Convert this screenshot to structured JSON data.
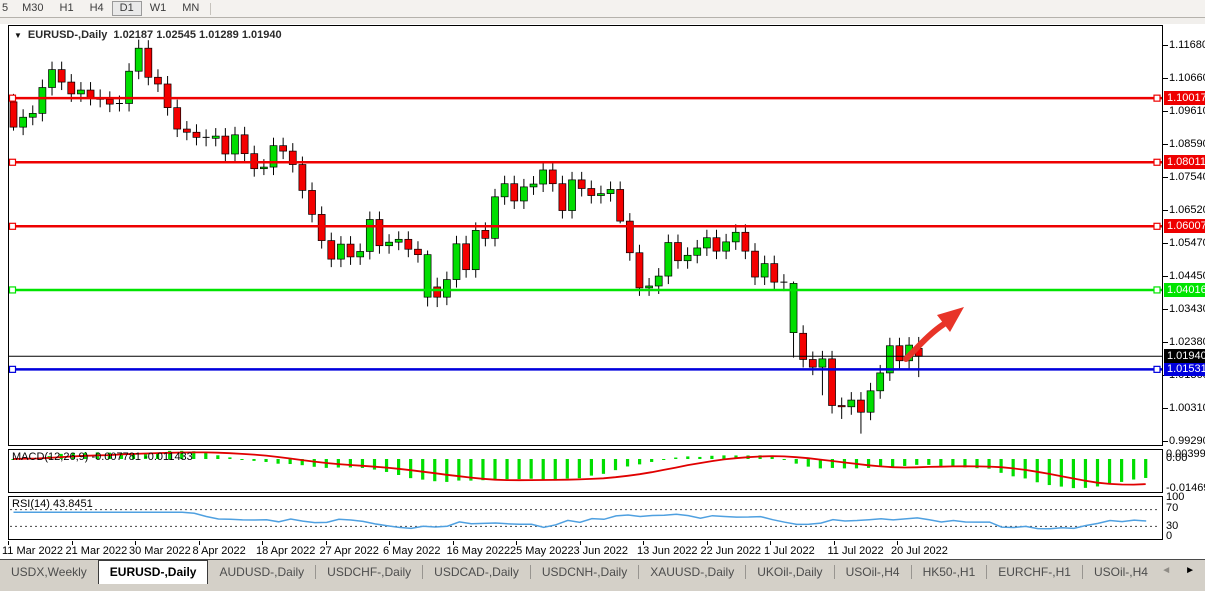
{
  "toolbar": {
    "periods": [
      {
        "label": "5",
        "active": false
      },
      {
        "label": "M30",
        "active": false
      },
      {
        "label": "H1",
        "active": false
      },
      {
        "label": "H4",
        "active": false
      },
      {
        "label": "D1",
        "active": true
      },
      {
        "label": "W1",
        "active": false
      },
      {
        "label": "MN",
        "active": false
      }
    ]
  },
  "chart": {
    "dropdown_glyph": "▼",
    "symbol_header": "EURUSD-,Daily",
    "ohlc_header": "1.02187 1.02545 1.01289 1.01940"
  },
  "price_axis": {
    "ticks": [
      "1.11680",
      "1.10660",
      "1.09610",
      "1.08590",
      "1.07540",
      "1.06520",
      "1.05470",
      "1.04450",
      "1.03430",
      "1.02380",
      "1.01360",
      "1.00310",
      "0.99290"
    ]
  },
  "chart_data": {
    "type": "candlestick",
    "symbol": "EURUSD-,Daily",
    "last_ohlc": {
      "open": "1.02187",
      "high": "1.02545",
      "low": "1.01289",
      "close": "1.01940"
    },
    "price_range": {
      "top": 1.1168,
      "bottom": 0.9929
    },
    "x_labels": [
      "11 Mar 2022",
      "21 Mar 2022",
      "30 Mar 2022",
      "8 Apr 2022",
      "18 Apr 2022",
      "27 Apr 2022",
      "6 May 2022",
      "16 May 2022",
      "25 May 2022",
      "3 Jun 2022",
      "13 Jun 2022",
      "22 Jun 2022",
      "1 Jul 2022",
      "11 Jul 2022",
      "20 Jul 2022"
    ],
    "colors": {
      "up": "#00DE00",
      "down": "#F40000",
      "wick": "#000000",
      "macd_hist": "#00DE00",
      "macd_signal": "#E00000",
      "rsi_line": "#4FA0E0",
      "line_red": "#EE0000",
      "line_green": "#00E400",
      "line_blue": "#0000DD",
      "bid_line": "#000000",
      "arrow": "#E83428"
    },
    "hlines": [
      {
        "price": 1.10017,
        "label": "1.10017",
        "color": "#EE0000",
        "kind": "resistance"
      },
      {
        "price": 1.08011,
        "label": "1.08011",
        "color": "#EE0000",
        "kind": "resistance"
      },
      {
        "price": 1.06007,
        "label": "1.06007",
        "color": "#EE0000",
        "kind": "resistance"
      },
      {
        "price": 1.04016,
        "label": "1.04016",
        "color": "#00E400",
        "kind": "support"
      },
      {
        "price": 1.01531,
        "label": "1.01531",
        "color": "#0000DD",
        "kind": "support"
      }
    ],
    "bid_line": {
      "price": 1.0194,
      "label": "1.01940",
      "color": "#000000"
    },
    "candles": [
      [
        1.099,
        1.1015,
        1.09,
        1.0911
      ],
      [
        1.0911,
        1.0967,
        1.0886,
        1.0942
      ],
      [
        1.0942,
        1.0979,
        1.0917,
        1.0954
      ],
      [
        1.0954,
        1.106,
        1.0929,
        1.1035
      ],
      [
        1.1035,
        1.1116,
        1.101,
        1.1091
      ],
      [
        1.1091,
        1.1116,
        1.1027,
        1.1052
      ],
      [
        1.1052,
        1.1077,
        1.099,
        1.1015
      ],
      [
        1.1015,
        1.1052,
        1.099,
        1.1027
      ],
      [
        1.1027,
        1.1052,
        1.0979,
        1.1004
      ],
      [
        1.1004,
        1.1029,
        1.0973,
        1.0998
      ],
      [
        1.0998,
        1.1023,
        1.0958,
        1.0983
      ],
      [
        1.0983,
        1.101,
        1.096,
        1.0985
      ],
      [
        1.0985,
        1.1111,
        1.096,
        1.1086
      ],
      [
        1.1086,
        1.1185,
        1.1061,
        1.1158
      ],
      [
        1.1158,
        1.1183,
        1.1042,
        1.1067
      ],
      [
        1.1067,
        1.1092,
        1.1021,
        1.1046
      ],
      [
        1.1046,
        1.1071,
        1.0947,
        1.0972
      ],
      [
        1.0972,
        1.0997,
        1.088,
        1.0905
      ],
      [
        1.0905,
        1.093,
        1.087,
        1.0895
      ],
      [
        1.0895,
        1.092,
        1.0854,
        1.0879
      ],
      [
        1.0879,
        1.0904,
        1.0851,
        1.0876
      ],
      [
        1.0876,
        1.0908,
        1.0851,
        1.0883
      ],
      [
        1.0883,
        1.0908,
        1.0802,
        1.0827
      ],
      [
        1.0827,
        1.0912,
        1.0802,
        1.0887
      ],
      [
        1.0887,
        1.0912,
        1.0803,
        1.0828
      ],
      [
        1.0828,
        1.0853,
        1.0756,
        1.0781
      ],
      [
        1.0781,
        1.0811,
        1.0761,
        1.0786
      ],
      [
        1.0786,
        1.0878,
        1.0761,
        1.0853
      ],
      [
        1.0853,
        1.0878,
        1.0811,
        1.0836
      ],
      [
        1.0836,
        1.0861,
        1.0769,
        1.0794
      ],
      [
        1.0794,
        1.0819,
        1.0688,
        1.0713
      ],
      [
        1.0713,
        1.0738,
        1.0613,
        1.0638
      ],
      [
        1.0638,
        1.0663,
        1.0531,
        1.0556
      ],
      [
        1.0556,
        1.0581,
        1.0473,
        1.0498
      ],
      [
        1.0498,
        1.057,
        1.0473,
        1.0545
      ],
      [
        1.0545,
        1.057,
        1.048,
        1.0505
      ],
      [
        1.0505,
        1.0547,
        1.048,
        1.0522
      ],
      [
        1.0522,
        1.0647,
        1.0497,
        1.0622
      ],
      [
        1.0622,
        1.0647,
        1.0515,
        1.054
      ],
      [
        1.054,
        1.0576,
        1.0515,
        1.0551
      ],
      [
        1.0551,
        1.0585,
        1.0526,
        1.056
      ],
      [
        1.056,
        1.0585,
        1.0504,
        1.0529
      ],
      [
        1.0529,
        1.0554,
        1.0487,
        1.0512
      ],
      [
        1.0379,
        1.0525,
        1.035,
        1.0512
      ],
      [
        1.0411,
        1.044,
        1.0348,
        1.0379
      ],
      [
        1.0379,
        1.0459,
        1.0354,
        1.0434
      ],
      [
        1.0434,
        1.0571,
        1.0409,
        1.0546
      ],
      [
        1.0546,
        1.0571,
        1.044,
        1.0465
      ],
      [
        1.0465,
        1.0613,
        1.044,
        1.0588
      ],
      [
        1.0588,
        1.0613,
        1.0538,
        1.0563
      ],
      [
        1.0563,
        1.0718,
        1.0538,
        1.0693
      ],
      [
        1.0693,
        1.0759,
        1.0668,
        1.0734
      ],
      [
        1.0734,
        1.0759,
        1.0655,
        1.068
      ],
      [
        1.068,
        1.0749,
        1.0655,
        1.0724
      ],
      [
        1.0724,
        1.0758,
        1.0699,
        1.0733
      ],
      [
        1.0733,
        1.0802,
        1.0708,
        1.0777
      ],
      [
        1.0777,
        1.0802,
        1.0709,
        1.0734
      ],
      [
        1.0734,
        1.0759,
        1.0625,
        1.065
      ],
      [
        1.065,
        1.0771,
        1.0625,
        1.0746
      ],
      [
        1.0746,
        1.0771,
        1.0694,
        1.0719
      ],
      [
        1.0719,
        1.0744,
        1.0672,
        1.0697
      ],
      [
        1.0697,
        1.0728,
        1.0672,
        1.0703
      ],
      [
        1.0703,
        1.0741,
        1.0678,
        1.0716
      ],
      [
        1.0716,
        1.0741,
        1.061,
        1.0617
      ],
      [
        1.0617,
        1.0642,
        1.0493,
        1.0518
      ],
      [
        1.0518,
        1.0543,
        1.0383,
        1.0408
      ],
      [
        1.0408,
        1.0439,
        1.0383,
        1.0414
      ],
      [
        1.0414,
        1.047,
        1.0389,
        1.0445
      ],
      [
        1.0445,
        1.0575,
        1.042,
        1.055
      ],
      [
        1.055,
        1.0575,
        1.0468,
        1.0493
      ],
      [
        1.0493,
        1.0535,
        1.0468,
        1.051
      ],
      [
        1.051,
        1.0558,
        1.0485,
        1.0533
      ],
      [
        1.0533,
        1.059,
        1.0508,
        1.0565
      ],
      [
        1.0565,
        1.059,
        1.0498,
        1.0523
      ],
      [
        1.0523,
        1.0577,
        1.0498,
        1.0552
      ],
      [
        1.0552,
        1.0607,
        1.0527,
        1.0582
      ],
      [
        1.0582,
        1.0607,
        1.0498,
        1.0523
      ],
      [
        1.0523,
        1.0548,
        1.0417,
        1.0442
      ],
      [
        1.0442,
        1.0509,
        1.0417,
        1.0484
      ],
      [
        1.0484,
        1.0509,
        1.0401,
        1.0426
      ],
      [
        1.0426,
        1.0451,
        1.0398,
        1.0423
      ],
      [
        1.0268,
        1.0428,
        1.019,
        1.0422
      ],
      [
        1.0266,
        1.0291,
        1.0159,
        1.0184
      ],
      [
        1.0184,
        1.0209,
        1.0135,
        1.016
      ],
      [
        1.016,
        1.0211,
        1.0072,
        1.0186
      ],
      [
        1.0186,
        1.0211,
        1.0015,
        1.004
      ],
      [
        1.004,
        1.0065,
        0.9998,
        1.0036
      ],
      [
        1.0036,
        1.0082,
        1.0011,
        1.0057
      ],
      [
        1.0057,
        1.0082,
        0.9952,
        1.0019
      ],
      [
        1.0019,
        1.0111,
        0.9994,
        1.0086
      ],
      [
        1.0086,
        1.0167,
        1.0061,
        1.0142
      ],
      [
        1.0142,
        1.0252,
        1.0117,
        1.0227
      ],
      [
        1.0227,
        1.0252,
        1.0155,
        1.018
      ],
      [
        1.018,
        1.0254,
        1.0155,
        1.0229
      ],
      [
        1.02187,
        1.02545,
        1.01289,
        1.0194
      ]
    ],
    "indicators": {
      "macd": {
        "label": "MACD(12,26,9) -0.007781 -0.011433",
        "params": [
          12,
          26,
          9
        ],
        "value_main": -0.007781,
        "value_signal": -0.011433,
        "axis": [
          "0.00399",
          "0.00",
          "-0.014693"
        ],
        "range": {
          "max": 0.00399,
          "min": -0.014693
        }
      },
      "rsi": {
        "label": "RSI(14) 43.8451",
        "period": 14,
        "value": 43.8451,
        "levels": [
          "100",
          "70",
          "30",
          "0"
        ],
        "level_lines": [
          70,
          30
        ]
      }
    },
    "annotation": {
      "type": "arrow-up-right",
      "color": "#E83428"
    }
  },
  "tabs": {
    "items": [
      "USDX,Weekly",
      "EURUSD-,Daily",
      "AUDUSD-,Daily",
      "USDCHF-,Daily",
      "USDCAD-,Daily",
      "USDCNH-,Daily",
      "XAUUSD-,Daily",
      "UKOil-,Daily",
      "USOil-,H4",
      "HK50-,H1",
      "EURCHF-,H1",
      "USOil-,H4"
    ],
    "active_index": 1,
    "scroll_left_glyph": "◄",
    "scroll_right_glyph": "►"
  }
}
